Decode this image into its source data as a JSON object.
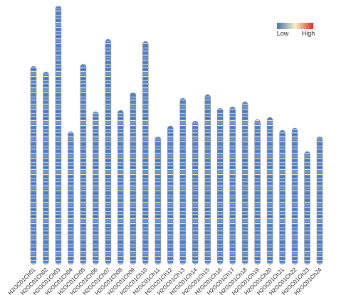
{
  "chart_data": {
    "type": "chromosome-density",
    "categories": [
      "H2GC01Ch01",
      "H2GC01Ch02",
      "H2GC01Ch03",
      "H2GC01Ch04",
      "H2GC01Ch05",
      "H2GC01Ch06",
      "H2GC01Ch07",
      "H2GC01Ch08",
      "H2GC01Ch09",
      "H2GC01Ch10",
      "H2GC01Ch11",
      "H2GC01Ch12",
      "H2GC01Ch13",
      "H2GC01Ch14",
      "H2GC01Ch15",
      "H2GC01Ch16",
      "H2GC01Ch17",
      "H2GC01Ch18",
      "H2GC01Ch19",
      "H2GC01Ch20",
      "H2GC01Ch21",
      "H2GC01Ch22",
      "H2GC01Ch23",
      "H2GC01Ch24"
    ],
    "values": [
      279,
      271,
      364,
      187,
      282,
      215,
      317,
      217,
      242,
      314,
      180,
      195,
      234,
      202,
      239,
      220,
      222,
      229,
      204,
      207,
      189,
      192,
      159,
      180
    ],
    "legend": {
      "low": "Low",
      "high": "High",
      "colors": [
        "#4575b4",
        "#f7f2c4",
        "#d73027"
      ]
    }
  }
}
